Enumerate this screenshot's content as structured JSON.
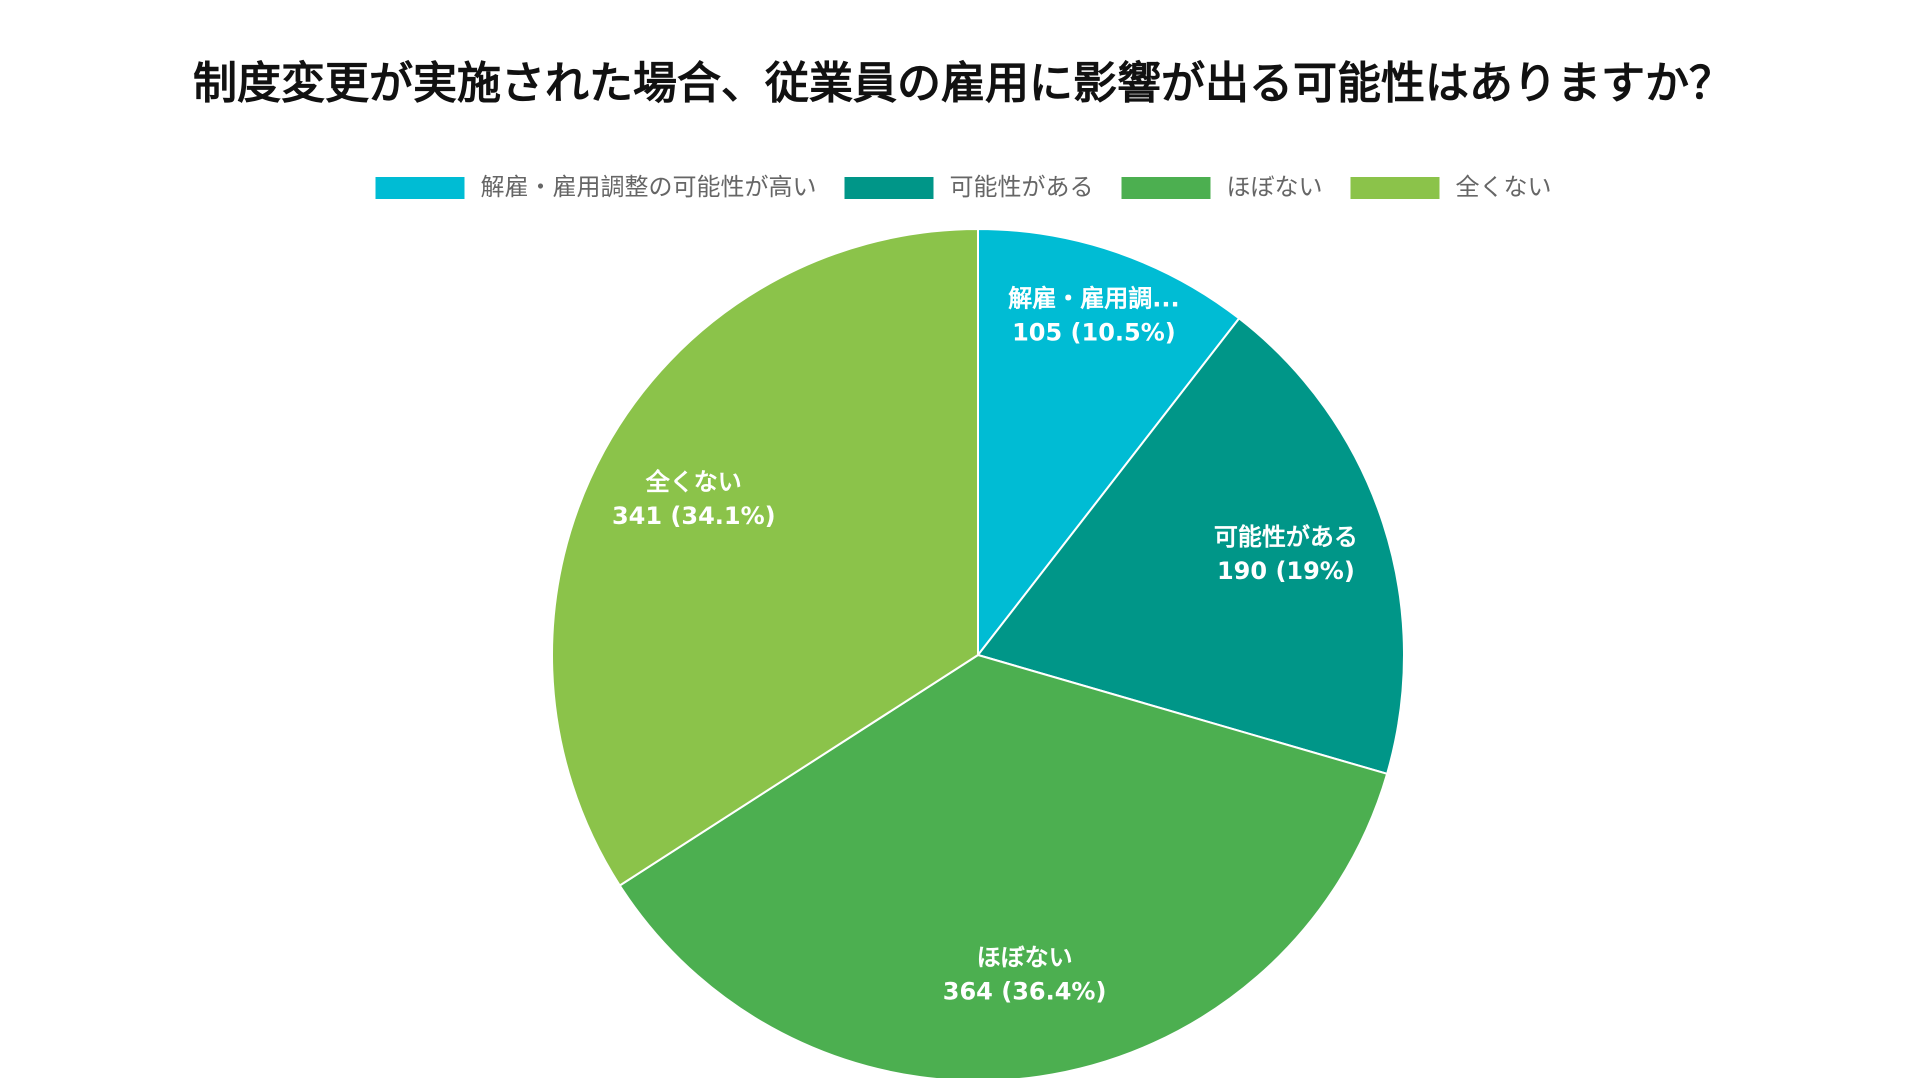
{
  "chart_data": {
    "type": "pie",
    "title": "制度変更が実施された場合、従業員の雇用に影響が出る可能性はありますか？",
    "categories": [
      "解雇・雇用調整の可能性が高い",
      "可能性がある",
      "ほぼない",
      "全くない"
    ],
    "slice_labels": [
      "解雇・雇用調...",
      "可能性がある",
      "ほぼない",
      "全くない"
    ],
    "values": [
      105,
      190,
      364,
      341
    ],
    "value_labels": [
      "105 (10.5%)",
      "190 (19%)",
      "364 (36.4%)",
      "341 (34.1%)"
    ],
    "colors": [
      "#00bcd4",
      "#009688",
      "#4caf50",
      "#8bc34a"
    ],
    "legend": "top"
  }
}
